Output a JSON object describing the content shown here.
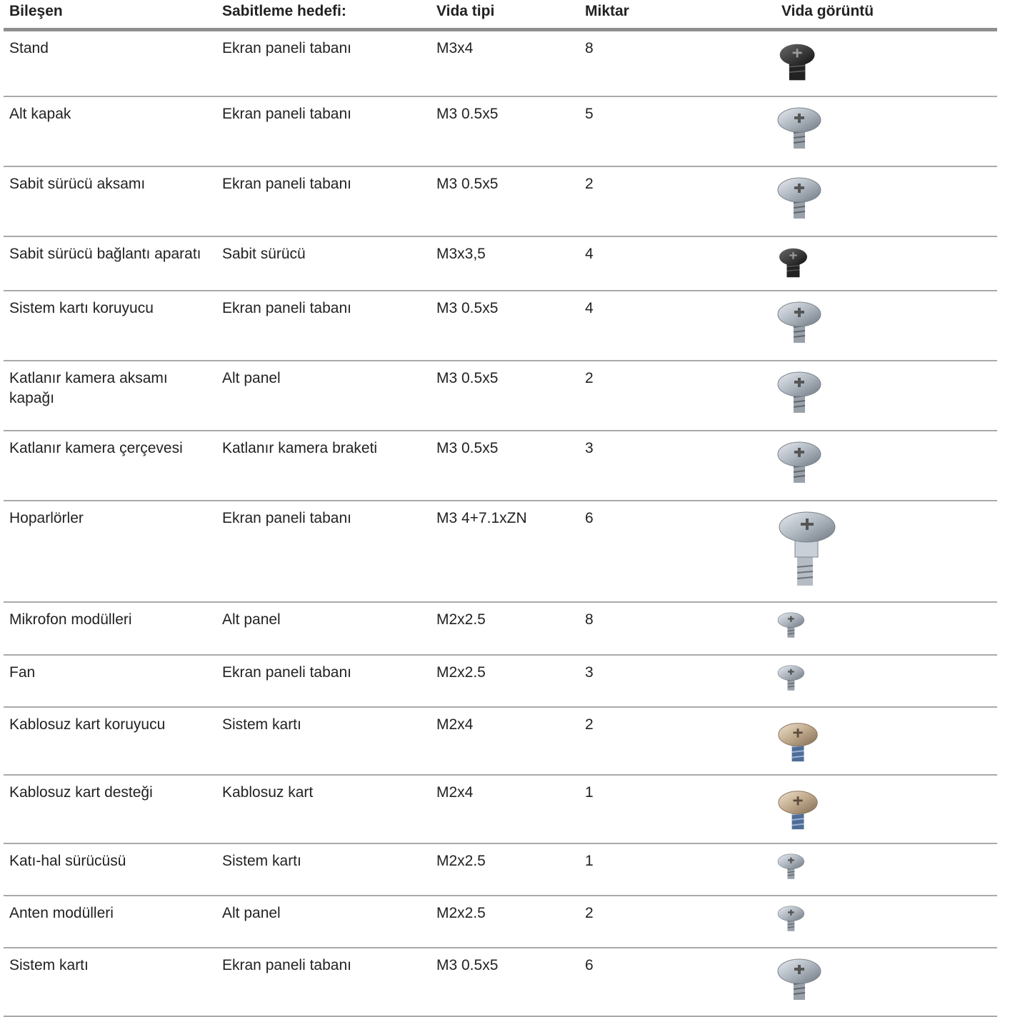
{
  "table": {
    "headers": [
      "Bileşen",
      "Sabitleme hedefi:",
      "Vida tipi",
      "Miktar",
      "Vida görüntü"
    ],
    "rows": [
      [
        "Stand",
        "Ekran paneli tabanı",
        "M3x4",
        8
      ],
      [
        "Alt kapak",
        "Ekran paneli tabanı",
        "M3 0.5x5",
        5
      ],
      [
        "Sabit sürücü aksamı",
        "Ekran paneli tabanı",
        "M3 0.5x5",
        2
      ],
      [
        "Sabit sürücü bağlantı aparatı",
        "Sabit sürücü",
        "M3x3,5",
        4
      ],
      [
        "Sistem kartı koruyucu",
        "Ekran paneli tabanı",
        "M3 0.5x5",
        4
      ],
      [
        "Katlanır kamera aksamı kapağı",
        "Alt panel",
        "M3 0.5x5",
        2
      ],
      [
        "Katlanır kamera çerçevesi",
        "Katlanır kamera braketi",
        "M3 0.5x5",
        3
      ],
      [
        "Hoparlörler",
        "Ekran paneli tabanı",
        "M3 4+7.1xZN",
        6
      ],
      [
        "Mikrofon modülleri",
        "Alt panel",
        "M2x2.5",
        8
      ],
      [
        "Fan",
        "Ekran paneli tabanı",
        "M2x2.5",
        3
      ],
      [
        "Kablosuz kart koruyucu",
        "Sistem kartı",
        "M2x4",
        2
      ],
      [
        "Kablosuz kart desteği",
        "Kablosuz kart",
        "M2x4",
        1
      ],
      [
        "Katı-hal sürücüsü",
        "Sistem kartı",
        "M2x2.5",
        1
      ],
      [
        "Anten modülleri",
        "Alt panel",
        "M2x2.5",
        2
      ],
      [
        "Sistem kartı",
        "Ekran paneli tabanı",
        "M3 0.5x5",
        6
      ]
    ]
  }
}
